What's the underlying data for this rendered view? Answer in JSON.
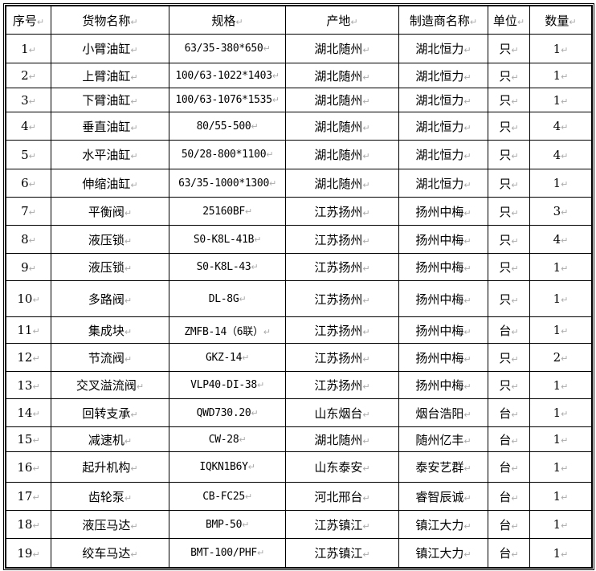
{
  "headers": [
    "序号",
    "货物名称",
    "规格",
    "产地",
    "制造商名称",
    "单位",
    "数量"
  ],
  "rows": [
    [
      "1",
      "小臂油缸",
      "63/35-380*650",
      "湖北随州",
      "湖北恒力",
      "只",
      "1"
    ],
    [
      "2",
      "上臂油缸",
      "100/63-1022*1403",
      "湖北随州",
      "湖北恒力",
      "只",
      "1"
    ],
    [
      "3",
      "下臂油缸",
      "100/63-1076*1535",
      "湖北随州",
      "湖北恒力",
      "只",
      "1"
    ],
    [
      "4",
      "垂直油缸",
      "80/55-500",
      "湖北随州",
      "湖北恒力",
      "只",
      "4"
    ],
    [
      "5",
      "水平油缸",
      "50/28-800*1100",
      "湖北随州",
      "湖北恒力",
      "只",
      "4"
    ],
    [
      "6",
      "伸缩油缸",
      "63/35-1000*1300",
      "湖北随州",
      "湖北恒力",
      "只",
      "1"
    ],
    [
      "7",
      "平衡阀",
      "25160BF",
      "江苏扬州",
      "扬州中梅",
      "只",
      "3"
    ],
    [
      "8",
      "液压锁",
      "S0-K8L-41B",
      "江苏扬州",
      "扬州中梅",
      "只",
      "4"
    ],
    [
      "9",
      "液压锁",
      "S0-K8L-43",
      "江苏扬州",
      "扬州中梅",
      "只",
      "1"
    ],
    [
      "10",
      "多路阀",
      "DL-8G",
      "江苏扬州",
      "扬州中梅",
      "只",
      "1"
    ],
    [
      "11",
      "集成块",
      "ZMFB-14（6联）",
      "江苏扬州",
      "扬州中梅",
      "台",
      "1"
    ],
    [
      "12",
      "节流阀",
      "GKZ-14",
      "江苏扬州",
      "扬州中梅",
      "只",
      "2"
    ],
    [
      "13",
      "交叉溢流阀",
      "VLP40-DI-38",
      "江苏扬州",
      "扬州中梅",
      "只",
      "1"
    ],
    [
      "14",
      "回转支承",
      "QWD730.20",
      "山东烟台",
      "烟台浩阳",
      "台",
      "1"
    ],
    [
      "15",
      "减速机",
      "CW-28",
      "湖北随州",
      "随州亿丰",
      "台",
      "1"
    ],
    [
      "16",
      "起升机构",
      "IQKN1B6Y",
      "山东泰安",
      "泰安艺群",
      "台",
      "1"
    ],
    [
      "17",
      "齿轮泵",
      "CB-FC25",
      "河北邢台",
      "睿智辰诚",
      "台",
      "1"
    ],
    [
      "18",
      "液压马达",
      "BMP-50",
      "江苏镇江",
      "镇江大力",
      "台",
      "1"
    ],
    [
      "19",
      "绞车马达",
      "BMT-100/PHF",
      "江苏镇江",
      "镇江大力",
      "台",
      "1"
    ]
  ],
  "paragraph_mark": "↵"
}
